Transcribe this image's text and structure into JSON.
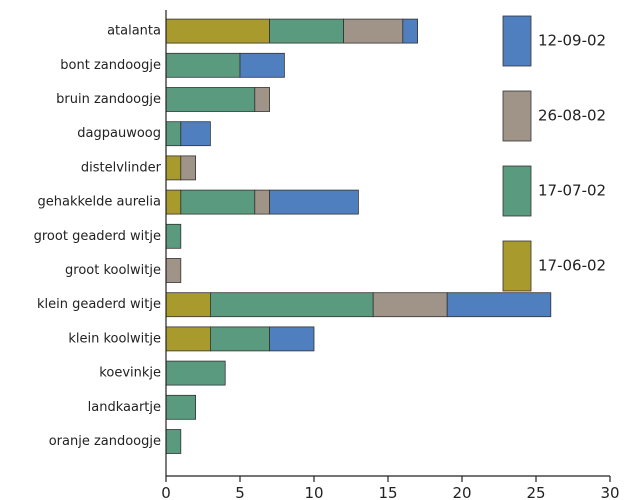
{
  "chart_data": {
    "type": "bar",
    "orientation": "horizontal",
    "stacked": true,
    "categories": [
      "atalanta",
      "bont zandoogje",
      "bruin zandoogje",
      "dagpauwoog",
      "distelvlinder",
      "gehakkelde aurelia",
      "groot geaderd witje",
      "groot koolwitje",
      "klein geaderd witje",
      "klein koolwitje",
      "koevinkje",
      "landkaartje",
      "oranje zandoogje"
    ],
    "series": [
      {
        "name": "17-06-02",
        "color": "#a89a2c",
        "values": [
          7,
          0,
          0,
          0,
          1,
          1,
          0,
          0,
          3,
          3,
          0,
          0,
          0
        ]
      },
      {
        "name": "17-07-02",
        "color": "#5a9a7e",
        "values": [
          5,
          5,
          6,
          1,
          0,
          5,
          1,
          0,
          11,
          4,
          4,
          2,
          1
        ]
      },
      {
        "name": "26-08-02",
        "color": "#a09488",
        "values": [
          4,
          0,
          1,
          0,
          1,
          1,
          0,
          1,
          5,
          0,
          0,
          0,
          0
        ]
      },
      {
        "name": "12-09-02",
        "color": "#4f7fbe",
        "values": [
          1,
          3,
          0,
          2,
          0,
          6,
          0,
          0,
          7,
          3,
          0,
          0,
          0
        ]
      }
    ],
    "xlim": [
      0,
      30
    ],
    "xticks": [
      "0",
      "5",
      "10",
      "15",
      "20",
      "25",
      "30"
    ],
    "legend_order": [
      "12-09-02",
      "26-08-02",
      "17-07-02",
      "17-06-02"
    ],
    "legend_position": "right",
    "grid": false,
    "title": "",
    "xlabel": "",
    "ylabel": ""
  }
}
